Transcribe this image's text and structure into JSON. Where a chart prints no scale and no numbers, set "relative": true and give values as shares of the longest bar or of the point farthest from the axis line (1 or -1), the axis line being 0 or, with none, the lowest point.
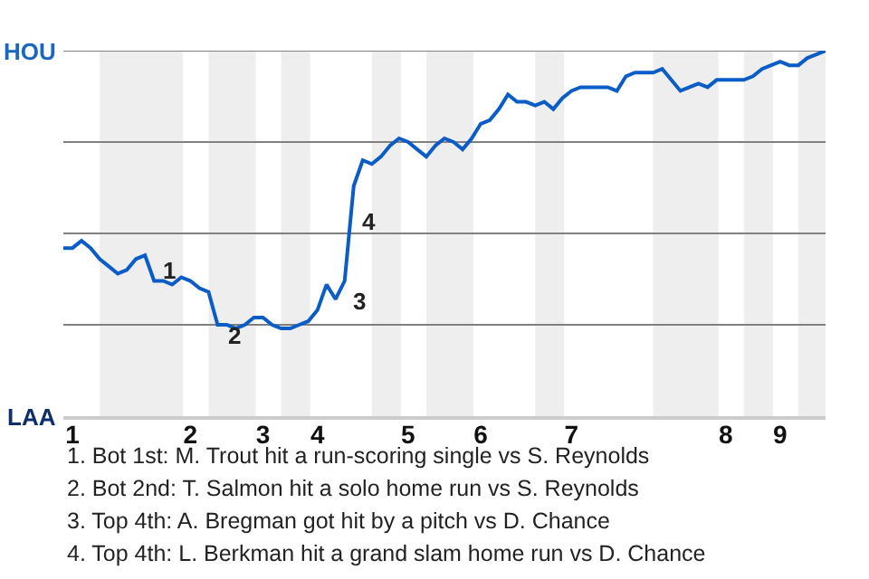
{
  "chart_data": {
    "type": "line",
    "relative": true,
    "categories": [
      null,
      "1",
      null,
      null,
      null,
      null,
      null,
      null,
      null,
      null,
      null,
      null,
      null,
      null,
      "2",
      null,
      null,
      null,
      null,
      null,
      null,
      null,
      "3",
      null,
      null,
      null,
      null,
      null,
      "4",
      null,
      null,
      null,
      null,
      null,
      null,
      null,
      null,
      null,
      "5",
      null,
      null,
      null,
      null,
      null,
      null,
      null,
      "6",
      null,
      null,
      null,
      null,
      null,
      null,
      null,
      null,
      null,
      "7",
      null,
      null,
      null,
      null,
      null,
      null,
      null,
      null,
      null,
      null,
      null,
      null,
      null,
      null,
      null,
      null,
      "8",
      null,
      null,
      null,
      null,
      null,
      "9",
      null,
      null,
      null,
      null,
      null
    ],
    "series": [
      {
        "color": "#0a5cc7",
        "values": [
          0.46,
          0.46,
          0.48,
          0.46,
          0.43,
          0.41,
          0.39,
          0.4,
          0.43,
          0.44,
          0.37,
          0.37,
          0.36,
          0.38,
          0.37,
          0.35,
          0.34,
          0.25,
          0.25,
          0.24,
          0.25,
          0.27,
          0.27,
          0.25,
          0.24,
          0.24,
          0.25,
          0.26,
          0.29,
          0.36,
          0.32,
          0.37,
          0.63,
          0.7,
          0.69,
          0.71,
          0.74,
          0.76,
          0.75,
          0.73,
          0.71,
          0.74,
          0.76,
          0.75,
          0.73,
          0.76,
          0.8,
          0.81,
          0.84,
          0.88,
          0.86,
          0.86,
          0.85,
          0.86,
          0.84,
          0.87,
          0.89,
          0.9,
          0.9,
          0.9,
          0.9,
          0.89,
          0.93,
          0.94,
          0.94,
          0.94,
          0.95,
          0.92,
          0.89,
          0.9,
          0.91,
          0.9,
          0.92,
          0.92,
          0.92,
          0.92,
          0.93,
          0.95,
          0.96,
          0.97,
          0.96,
          0.96,
          0.98,
          0.99,
          1.0
        ]
      }
    ],
    "marker": "none",
    "line_style": "solid",
    "ref_lines": [
      {
        "axis": "y",
        "value": 0.25,
        "color": "#808080"
      },
      {
        "axis": "y",
        "value": 0.5,
        "color": "#808080"
      },
      {
        "axis": "y",
        "value": 0.75,
        "color": "#808080"
      },
      {
        "axis": "y",
        "value": 1.0,
        "color": "#808080"
      }
    ],
    "annotations": [
      "1",
      "2",
      "3",
      "4",
      "HOU",
      "LAA",
      "1. Bot 1st: M. Trout hit a run-scoring single vs S. Reynolds",
      "2. Bot 2nd: T. Salmon hit a solo home run vs S. Reynolds",
      "3. Top 4th: A. Bregman got hit by a pitch vs D. Chance",
      "4. Top 4th: L. Berkman hit a grand slam home run vs D. Chance"
    ]
  }
}
